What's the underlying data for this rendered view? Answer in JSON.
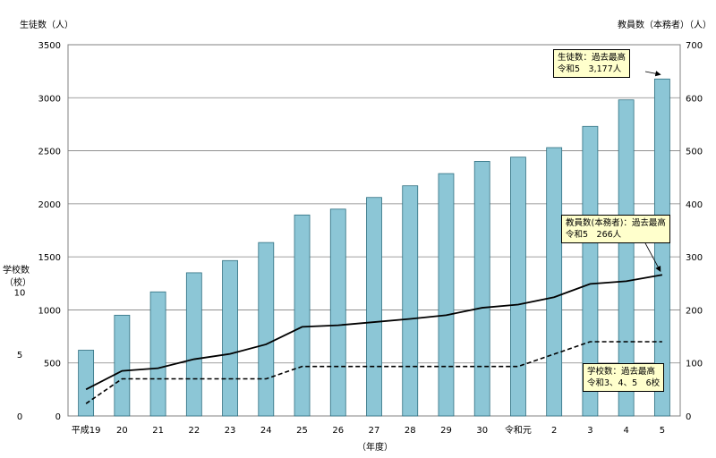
{
  "chart_data": {
    "type": "bar+line",
    "categories": [
      "平成19",
      "20",
      "21",
      "22",
      "23",
      "24",
      "25",
      "26",
      "27",
      "28",
      "29",
      "30",
      "令和元",
      "2",
      "3",
      "4",
      "5"
    ],
    "series": [
      {
        "name": "生徒数",
        "kind": "bar",
        "axis": "left",
        "color": "#8cc6d6",
        "values": [
          620,
          950,
          1170,
          1350,
          1465,
          1635,
          1895,
          1950,
          2060,
          2170,
          2285,
          2400,
          2440,
          2530,
          2730,
          2980,
          3177
        ]
      },
      {
        "name": "教員数（本務者）",
        "kind": "line",
        "style": "solid",
        "axis": "right",
        "values": [
          50,
          85,
          90,
          107,
          117,
          135,
          168,
          171,
          177,
          183,
          190,
          204,
          210,
          224,
          249,
          254,
          266
        ]
      },
      {
        "name": "学校数",
        "kind": "line",
        "style": "dashed",
        "axis": "right",
        "values": [
          1,
          3,
          3,
          3,
          3,
          3,
          4,
          4,
          4,
          4,
          4,
          4,
          4,
          5,
          6,
          6,
          6
        ]
      }
    ],
    "ylabel_left": "生徒数（人）",
    "ylabel_right": "教員数（本務者）（人）",
    "ylabel_school": [
      "学校数",
      "（校）"
    ],
    "xlabel": "（年度）",
    "ylim_left": [
      0,
      3500
    ],
    "ylim_right": [
      0,
      700
    ],
    "yticks_left": [
      0,
      500,
      1000,
      1500,
      2000,
      2500,
      3000,
      3500
    ],
    "yticks_right": [
      0,
      100,
      200,
      300,
      400,
      500,
      600,
      700
    ],
    "yticks_school": [
      0,
      5,
      10
    ],
    "grid": true,
    "annotations": [
      {
        "lines": [
          "生徒数：過去最高",
          "令和5　3,177人"
        ]
      },
      {
        "lines": [
          "教員数(本務者)：過去最高",
          "令和5　266人"
        ]
      },
      {
        "lines": [
          "学校数：過去最高",
          "令和3、4、5　6校"
        ]
      }
    ]
  }
}
